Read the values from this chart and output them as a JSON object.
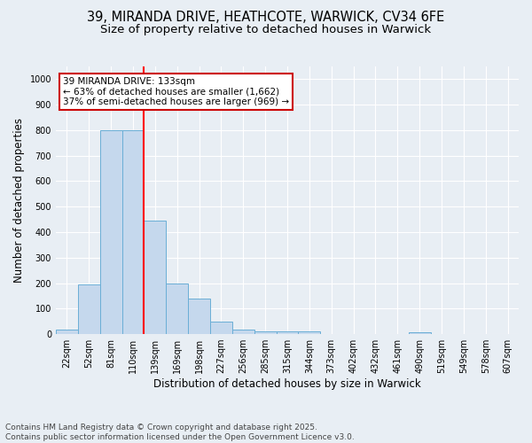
{
  "title_line1": "39, MIRANDA DRIVE, HEATHCOTE, WARWICK, CV34 6FE",
  "title_line2": "Size of property relative to detached houses in Warwick",
  "xlabel": "Distribution of detached houses by size in Warwick",
  "ylabel": "Number of detached properties",
  "footer_line1": "Contains HM Land Registry data © Crown copyright and database right 2025.",
  "footer_line2": "Contains public sector information licensed under the Open Government Licence v3.0.",
  "bar_labels": [
    "22sqm",
    "52sqm",
    "81sqm",
    "110sqm",
    "139sqm",
    "169sqm",
    "198sqm",
    "227sqm",
    "256sqm",
    "285sqm",
    "315sqm",
    "344sqm",
    "373sqm",
    "402sqm",
    "432sqm",
    "461sqm",
    "490sqm",
    "519sqm",
    "549sqm",
    "578sqm",
    "607sqm"
  ],
  "bar_values": [
    18,
    195,
    800,
    800,
    445,
    200,
    140,
    50,
    18,
    12,
    10,
    10,
    0,
    0,
    0,
    0,
    8,
    0,
    0,
    0,
    0
  ],
  "bar_color": "#c5d8ed",
  "bar_edge_color": "#6aaed6",
  "annotation_text": "39 MIRANDA DRIVE: 133sqm\n← 63% of detached houses are smaller (1,662)\n37% of semi-detached houses are larger (969) →",
  "annotation_box_color": "#ffffff",
  "annotation_box_edge": "#cc0000",
  "ylim": [
    0,
    1050
  ],
  "yticks": [
    0,
    100,
    200,
    300,
    400,
    500,
    600,
    700,
    800,
    900,
    1000
  ],
  "background_color": "#e8eef4",
  "grid_color": "#ffffff",
  "title_fontsize": 10.5,
  "subtitle_fontsize": 9.5,
  "axis_label_fontsize": 8.5,
  "tick_fontsize": 7,
  "footer_fontsize": 6.5,
  "annotation_fontsize": 7.5,
  "red_line_x": 3.5
}
